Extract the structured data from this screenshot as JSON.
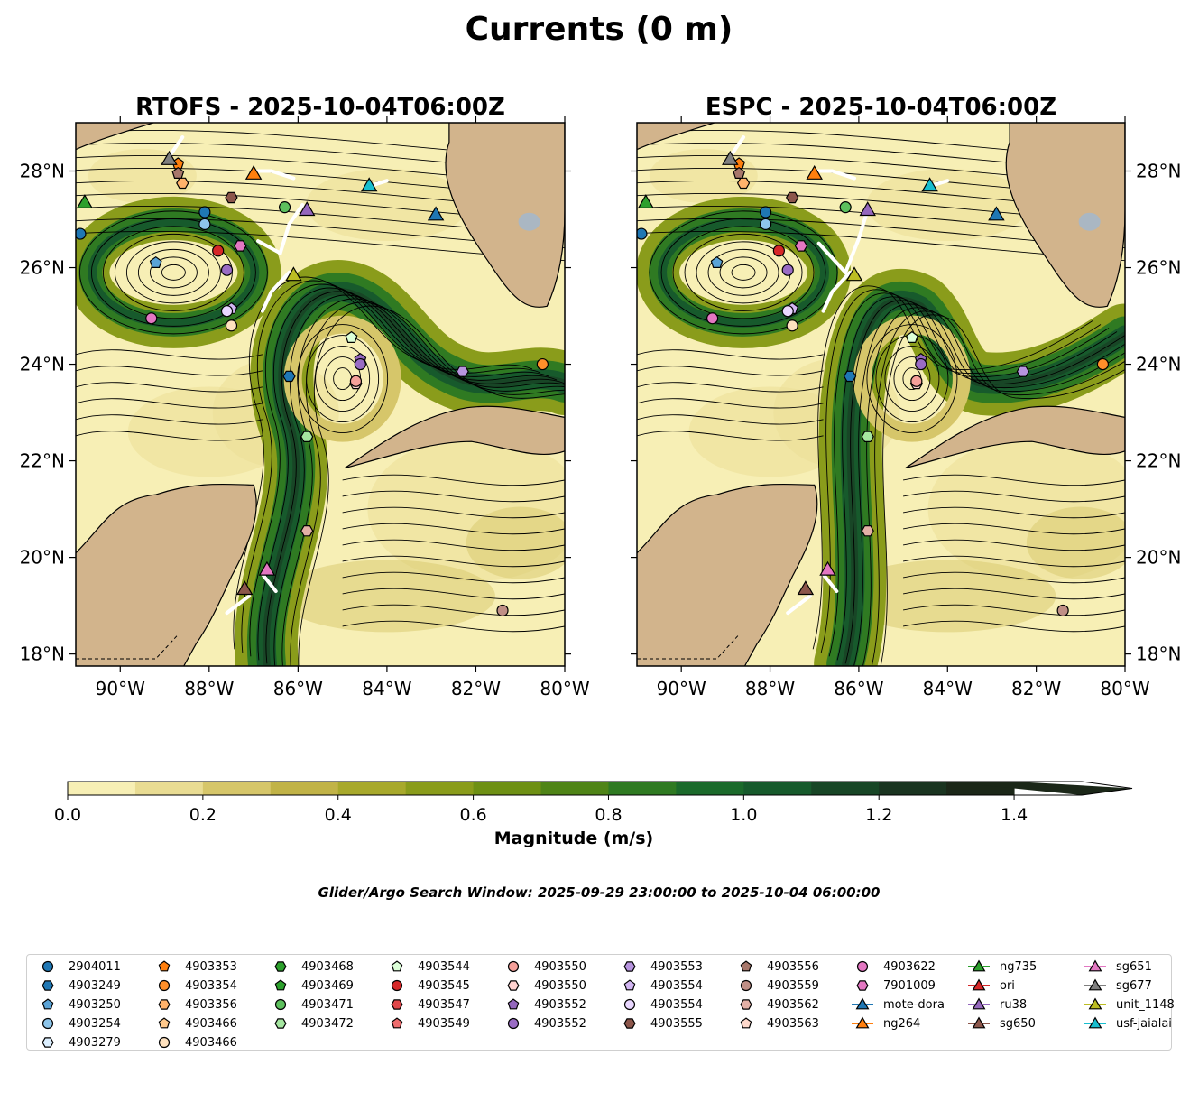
{
  "figure": {
    "title": "Currents (0 m)",
    "search_window": "Glider/Argo Search Window: 2025-09-29 23:00:00 to 2025-10-04 06:00:00"
  },
  "chart_data": [
    {
      "type": "heatmap",
      "title": "RTOFS - 2025-10-04T06:00Z",
      "x_ticks": [
        "90°W",
        "88°W",
        "86°W",
        "84°W",
        "82°W",
        "80°W"
      ],
      "y_ticks": [
        "28°N",
        "26°N",
        "24°N",
        "22°N",
        "20°N",
        "18°N"
      ],
      "xlim": [
        -91.0,
        -80.0
      ],
      "ylim": [
        17.75,
        29.0
      ],
      "variable": "current speed with streamlines"
    },
    {
      "type": "heatmap",
      "title": "ESPC - 2025-10-04T06:00Z",
      "x_ticks": [
        "90°W",
        "88°W",
        "86°W",
        "84°W",
        "82°W",
        "80°W"
      ],
      "y_ticks": [
        "28°N",
        "26°N",
        "24°N",
        "22°N",
        "20°N",
        "18°N"
      ],
      "xlim": [
        -91.0,
        -80.0
      ],
      "ylim": [
        17.75,
        29.0
      ],
      "variable": "current speed with streamlines"
    }
  ],
  "colorbar": {
    "label": "Magnitude (m/s)",
    "tick_labels": [
      "0.0",
      "0.2",
      "0.4",
      "0.6",
      "0.8",
      "1.0",
      "1.2",
      "1.4"
    ],
    "range": [
      0.0,
      1.5
    ],
    "extend": "max",
    "colors": [
      "#f7efb5",
      "#e9dc93",
      "#d6c66a",
      "#c1b347",
      "#a8a92c",
      "#8a9c1b",
      "#6e9014",
      "#4f8417",
      "#2f7a22",
      "#1b6a2b",
      "#175a2c",
      "#184626",
      "#1a3420",
      "#1b2718"
    ]
  },
  "colors": {
    "land": "#d2b48c",
    "lakes": "#aab7c3",
    "gliders_track": "#ffffff"
  },
  "legend": [
    {
      "label": "2904011",
      "marker": "circle",
      "color": "#1f77b4"
    },
    {
      "label": "4903249",
      "marker": "hexagon",
      "color": "#1f77b4"
    },
    {
      "label": "4903250",
      "marker": "pentagon",
      "color": "#5aa3d6"
    },
    {
      "label": "4903254",
      "marker": "circle",
      "color": "#8dc5ea"
    },
    {
      "label": "4903279",
      "marker": "hexagon",
      "color": "#dcefff"
    },
    {
      "label": "4903353",
      "marker": "pentagon",
      "color": "#ff7f0e"
    },
    {
      "label": "4903354",
      "marker": "circle",
      "color": "#ff8f2a"
    },
    {
      "label": "4903356",
      "marker": "hexagon",
      "color": "#ffb26b"
    },
    {
      "label": "4903466",
      "marker": "pentagon",
      "color": "#ffc98c"
    },
    {
      "label": "4903466",
      "marker": "circle",
      "color": "#ffe2bf"
    },
    {
      "label": "4903468",
      "marker": "hexagon",
      "color": "#2ca02c"
    },
    {
      "label": "4903469",
      "marker": "pentagon",
      "color": "#2ca02c"
    },
    {
      "label": "4903471",
      "marker": "circle",
      "color": "#5dc05d"
    },
    {
      "label": "4903472",
      "marker": "hexagon",
      "color": "#a5e6a0"
    },
    {
      "label": "4903544",
      "marker": "pentagon",
      "color": "#dcffd8"
    },
    {
      "label": "4903545",
      "marker": "circle",
      "color": "#d62728"
    },
    {
      "label": "4903547",
      "marker": "hexagon",
      "color": "#e0474a"
    },
    {
      "label": "4903549",
      "marker": "pentagon",
      "color": "#ee6c6d"
    },
    {
      "label": "4903550",
      "marker": "circle",
      "color": "#f5a09a"
    },
    {
      "label": "4903550",
      "marker": "hexagon",
      "color": "#ffd2d0"
    },
    {
      "label": "4903552",
      "marker": "pentagon",
      "color": "#9467bd"
    },
    {
      "label": "4903552",
      "marker": "circle",
      "color": "#9a6cc4"
    },
    {
      "label": "4903553",
      "marker": "hexagon",
      "color": "#b794df"
    },
    {
      "label": "4903554",
      "marker": "pentagon",
      "color": "#d2b6f2"
    },
    {
      "label": "4903554",
      "marker": "circle",
      "color": "#e9d7ff"
    },
    {
      "label": "4903555",
      "marker": "hexagon",
      "color": "#8c564b"
    },
    {
      "label": "4903556",
      "marker": "pentagon",
      "color": "#a7776b"
    },
    {
      "label": "4903559",
      "marker": "circle",
      "color": "#c08f86"
    },
    {
      "label": "4903562",
      "marker": "hexagon",
      "color": "#e3b0a6"
    },
    {
      "label": "4903563",
      "marker": "pentagon",
      "color": "#ffd9cc"
    },
    {
      "label": "4903622",
      "marker": "circle",
      "color": "#e377c2"
    },
    {
      "label": "7901009",
      "marker": "hexagon",
      "color": "#e377c2"
    },
    {
      "label": "mote-dora",
      "marker": "triangle",
      "color": "#1f77b4"
    },
    {
      "label": "ng264",
      "marker": "triangle",
      "color": "#ff7f0e"
    },
    {
      "label": "ng735",
      "marker": "triangle",
      "color": "#2ca02c"
    },
    {
      "label": "ori",
      "marker": "triangle",
      "color": "#d62728"
    },
    {
      "label": "ru38",
      "marker": "triangle",
      "color": "#9467bd"
    },
    {
      "label": "sg650",
      "marker": "triangle",
      "color": "#8c564b"
    },
    {
      "label": "sg651",
      "marker": "triangle",
      "color": "#e377c2"
    },
    {
      "label": "sg677",
      "marker": "triangle",
      "color": "#7f7f7f"
    },
    {
      "label": "unit_1148",
      "marker": "triangle",
      "color": "#bcbd22"
    },
    {
      "label": "usf-jaialai",
      "marker": "triangle",
      "color": "#17becf"
    }
  ]
}
